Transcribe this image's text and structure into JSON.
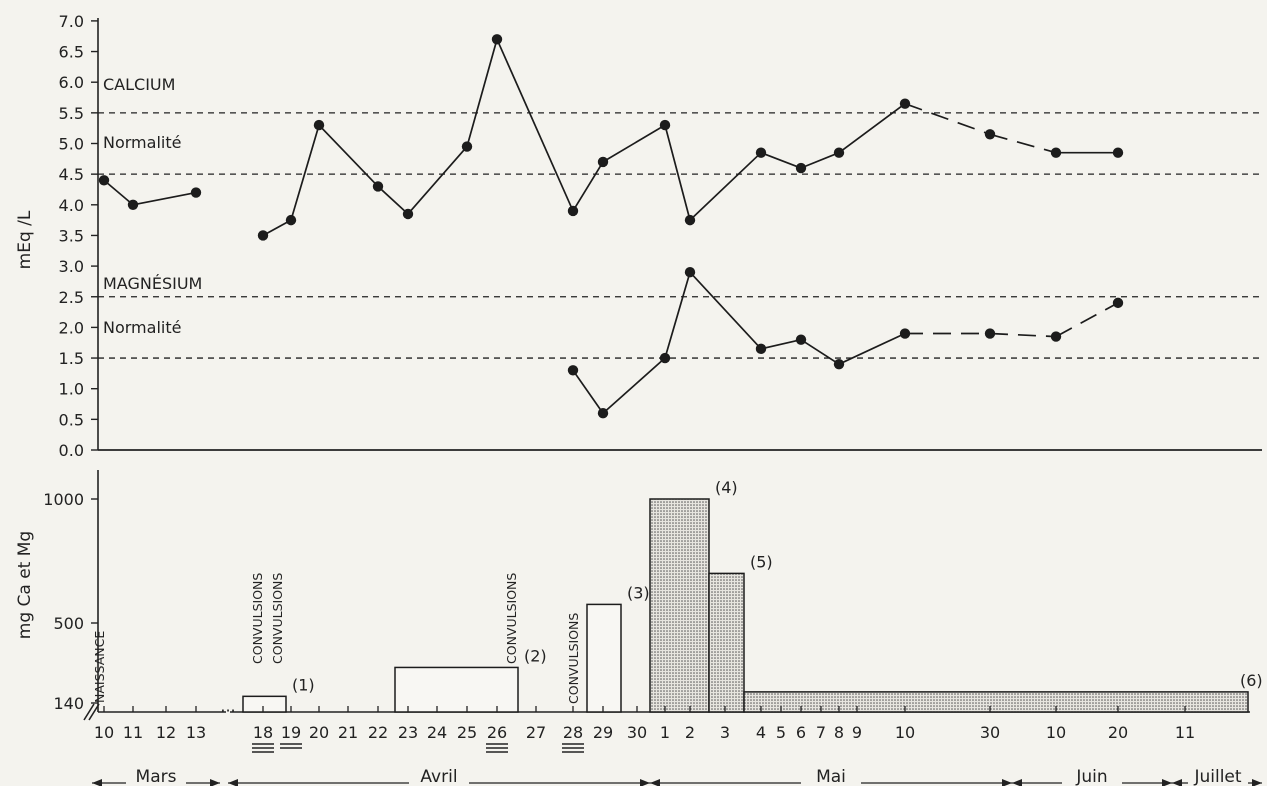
{
  "chart_data": [
    {
      "type": "line",
      "ylabel": "mEq /L",
      "ylim": [
        0,
        7
      ],
      "yticks": [
        "0.0",
        "0.5",
        "1.0",
        "1.5",
        "2.0",
        "2.5",
        "3.0",
        "3.5",
        "4.0",
        "4.5",
        "5.0",
        "5.5",
        "6.0",
        "6.5",
        "7.0"
      ],
      "labels": {
        "calcium": "CALCIUM",
        "calcium_norm": "Normalité",
        "magnesium": "MAGNÉSIUM",
        "magnesium_norm": "Normalité"
      },
      "reference_lines": {
        "calcium": [
          4.5,
          5.5
        ],
        "magnesium": [
          1.5,
          2.5
        ]
      },
      "series": [
        {
          "points": [
            {
              "x": "10 Mars",
              "y": 4.4,
              "solid": true
            },
            {
              "x": "11 Mars",
              "y": 4.0,
              "solid": true
            },
            {
              "x": "13 Mars",
              "y": 4.2,
              "solid": true
            },
            {
              "x": "18 Avril",
              "y": 3.5,
              "solid": false
            },
            {
              "x": "19 Avril",
              "y": 3.75,
              "solid": true
            },
            {
              "x": "20 Avril",
              "y": 5.3,
              "solid": true
            },
            {
              "x": "22 Avril",
              "y": 4.3,
              "solid": true
            },
            {
              "x": "23 Avril",
              "y": 3.85,
              "solid": true
            },
            {
              "x": "25 Avril",
              "y": 4.95,
              "solid": true
            },
            {
              "x": "26 Avril",
              "y": 6.7,
              "solid": true
            },
            {
              "x": "28 Avril",
              "y": 3.9,
              "solid": true
            },
            {
              "x": "29 Avril",
              "y": 4.7,
              "solid": true
            },
            {
              "x": "1 Mai",
              "y": 5.3,
              "solid": true
            },
            {
              "x": "2 Mai",
              "y": 3.75,
              "solid": true
            },
            {
              "x": "4 Mai",
              "y": 4.85,
              "solid": true
            },
            {
              "x": "6 Mai",
              "y": 4.6,
              "solid": true
            },
            {
              "x": "8 Mai",
              "y": 4.85,
              "solid": true
            },
            {
              "x": "10 Mai",
              "y": 5.65,
              "solid": true
            },
            {
              "x": "30 Mai",
              "y": 5.15,
              "solid": false
            },
            {
              "x": "10 Juin",
              "y": 4.85,
              "solid": false
            },
            {
              "x": "20 Juin",
              "y": 4.85,
              "solid": true
            }
          ]
        },
        {
          "points": [
            {
              "x": "28 Avril",
              "y": 1.3,
              "solid": false
            },
            {
              "x": "29 Avril",
              "y": 0.6,
              "solid": true
            },
            {
              "x": "1 Mai",
              "y": 1.5,
              "solid": true
            },
            {
              "x": "2 Mai",
              "y": 2.9,
              "solid": true
            },
            {
              "x": "4 Mai",
              "y": 1.65,
              "solid": true
            },
            {
              "x": "6 Mai",
              "y": 1.8,
              "solid": true
            },
            {
              "x": "8 Mai",
              "y": 1.4,
              "solid": true
            },
            {
              "x": "10 Mai",
              "y": 1.9,
              "solid": true
            },
            {
              "x": "30 Mai",
              "y": 1.9,
              "solid": false
            },
            {
              "x": "10 Juin",
              "y": 1.85,
              "solid": false
            },
            {
              "x": "20 Juin",
              "y": 2.4,
              "solid": false
            }
          ]
        }
      ]
    },
    {
      "type": "bar",
      "ylabel": "mg Ca et Mg",
      "yticks": [
        140,
        500,
        1000
      ],
      "bars": [
        {
          "from": "18 Avril",
          "to": "19 Avril",
          "value": 170,
          "label": "(1)",
          "hatched": false
        },
        {
          "from": "23 Avril",
          "to": "26 Avril",
          "value": 300,
          "label": "(2)",
          "hatched": false
        },
        {
          "from": "29 Avril",
          "to": "30 Avril",
          "value": 575,
          "label": "(3)",
          "hatched": false
        },
        {
          "from": "1 Mai",
          "to": "2 Mai",
          "value": 1000,
          "label": "(4)",
          "hatched": true
        },
        {
          "from": "2 Mai",
          "to": "3 Mai",
          "value": 700,
          "label": "(5)",
          "hatched": true
        },
        {
          "from": "3 Mai",
          "to": "Juillet",
          "value": 190,
          "label": "(6)",
          "hatched": true
        }
      ],
      "annotations": [
        {
          "text": "NAISSANCE",
          "at": "10 Mars"
        },
        {
          "text": "CONVULSIONS",
          "at": "18 Avril"
        },
        {
          "text": "CONVULSIONS",
          "at": "19 Avril"
        },
        {
          "text": "CONVULSIONS",
          "at": "26 Avril"
        },
        {
          "text": "CONVULSIONS",
          "at": "28 Avril"
        }
      ],
      "underlined_days": [
        "18",
        "19",
        "26",
        "28"
      ]
    }
  ],
  "x_axis": {
    "ticks": [
      "10",
      "11",
      "12",
      "13",
      "18",
      "19",
      "20",
      "21",
      "22",
      "23",
      "24",
      "25",
      "26",
      "27",
      "28",
      "29",
      "30",
      "1",
      "2",
      "3",
      "4",
      "5",
      "6",
      "7",
      "8",
      "9",
      "10",
      "30",
      "10",
      "20",
      "11"
    ],
    "months": [
      "Mars",
      "Avril",
      "Mai",
      "Juin",
      "Juillet"
    ]
  }
}
